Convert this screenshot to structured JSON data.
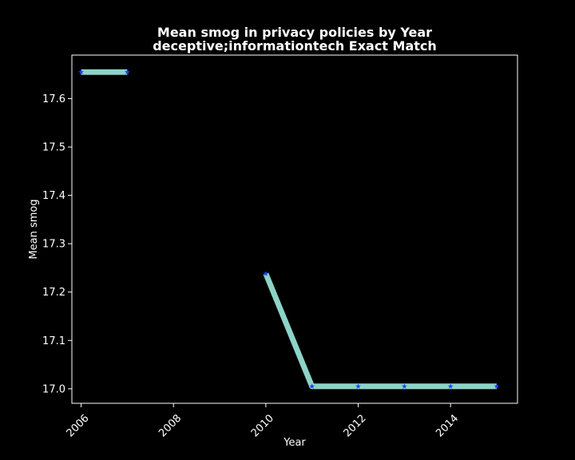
{
  "chart_data": {
    "type": "line",
    "title_line1": "Mean smog in privacy policies by Year",
    "title_line2": "deceptive;informationtech Exact Match",
    "xlabel": "Year",
    "ylabel": "Mean smog",
    "xlim": [
      2005.8,
      2015.45
    ],
    "ylim": [
      16.97,
      17.69
    ],
    "xticks": [
      2006,
      2008,
      2010,
      2012,
      2014
    ],
    "yticks": [
      17.0,
      17.1,
      17.2,
      17.3,
      17.4,
      17.5,
      17.6
    ],
    "grid": false,
    "line_color": "#8dd3c7",
    "marker_color": "#1f3fff",
    "background": "#000000",
    "series": [
      {
        "segments": [
          [
            {
              "x": 2006,
              "y": 17.655
            },
            {
              "x": 2007,
              "y": 17.655
            }
          ],
          [
            {
              "x": 2010,
              "y": 17.238
            },
            {
              "x": 2011,
              "y": 17.005
            },
            {
              "x": 2012,
              "y": 17.005
            },
            {
              "x": 2013,
              "y": 17.005
            },
            {
              "x": 2014,
              "y": 17.005
            },
            {
              "x": 2015,
              "y": 17.005
            }
          ]
        ]
      }
    ]
  }
}
